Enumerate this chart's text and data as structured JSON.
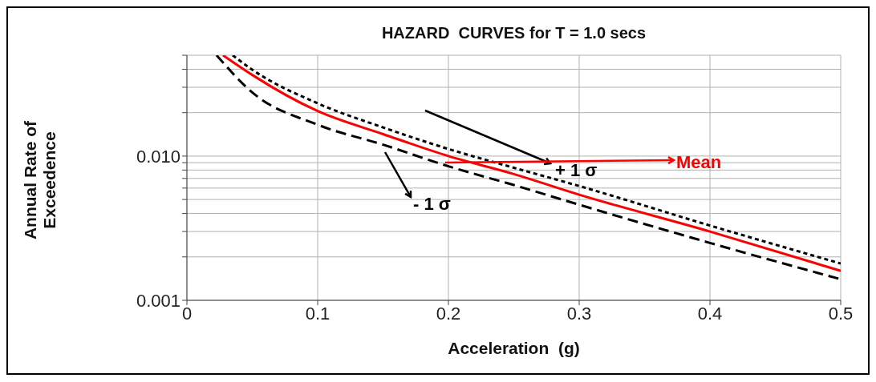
{
  "chart_data": {
    "type": "line",
    "title": "HAZARD  CURVES for T = 1.0 secs",
    "xlabel": "Acceleration  (g)",
    "ylabel": "Annual Rate of Exceedence",
    "log": "y",
    "grid": true,
    "marker": "none",
    "xlim": [
      0,
      0.5
    ],
    "xticks": [
      0,
      0.1,
      0.2,
      0.3,
      0.4,
      0.5
    ],
    "ylim": [
      0.001,
      0.05
    ],
    "yticks": [
      0.001,
      {
        "value": 0.002,
        "label": null
      },
      {
        "value": 0.003,
        "label": null
      },
      {
        "value": 0.004,
        "label": null
      },
      {
        "value": 0.005,
        "label": null
      },
      {
        "value": 0.006,
        "label": null
      },
      {
        "value": 0.007,
        "label": null
      },
      {
        "value": 0.008,
        "label": null
      },
      {
        "value": 0.009,
        "label": null
      },
      {
        "value": 0.01,
        "label": "0.010"
      },
      {
        "value": 0.02,
        "label": null
      },
      {
        "value": 0.03,
        "label": null
      },
      {
        "value": 0.04,
        "label": null
      },
      {
        "value": 0.05,
        "label": null
      }
    ],
    "series": [
      {
        "name": "+ 1 σ",
        "color": "#000000",
        "line_style": "dashed",
        "x": [
          0.035,
          0.05,
          0.1,
          0.15,
          0.2,
          0.25,
          0.3,
          0.4,
          0.5
        ],
        "values": [
          0.05,
          0.0397,
          0.0232,
          0.0158,
          0.0112,
          0.0083,
          0.0062,
          0.0033,
          0.0018
        ]
      },
      {
        "name": "Mean",
        "color": "#ff0000",
        "line_style": "solid",
        "x": [
          0.0276,
          0.05,
          0.1,
          0.15,
          0.2,
          0.25,
          0.3,
          0.4,
          0.5
        ],
        "values": [
          0.05,
          0.0365,
          0.0205,
          0.0142,
          0.01,
          0.0075,
          0.0054,
          0.003,
          0.0016
        ]
      },
      {
        "name": "- 1 σ",
        "color": "#000000",
        "line_style": "dashed",
        "x": [
          0.0227,
          0.05,
          0.1,
          0.15,
          0.2,
          0.25,
          0.3,
          0.4,
          0.5
        ],
        "values": [
          0.05,
          0.0276,
          0.0165,
          0.012,
          0.0085,
          0.0063,
          0.0046,
          0.0025,
          0.0014
        ]
      }
    ]
  }
}
